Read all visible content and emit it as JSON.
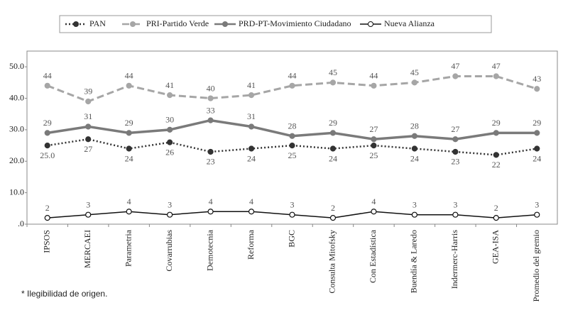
{
  "chart_data": {
    "type": "line",
    "categories": [
      "IPSOS",
      "MERCAEI",
      "Parametria",
      "Covarrubias",
      "Demotecnia",
      "Reforma",
      "BGC",
      "Consulta Mitofsky",
      "Con Estadística",
      "Buendía & Laredo",
      "Indermerc-Harris",
      "GEA-ISA",
      "Promedio del gremio"
    ],
    "series": [
      {
        "name": "PAN",
        "color": "#333333",
        "dash": "dotted",
        "values": [
          25,
          27,
          24,
          26,
          23,
          24,
          25,
          24,
          25,
          24,
          23,
          22,
          24
        ],
        "value_labels": [
          "25.0",
          "27",
          "24",
          "26",
          "23",
          "24",
          "25",
          "24",
          "25",
          "24",
          "23",
          "22",
          "24"
        ]
      },
      {
        "name": "PRI-Partido Verde",
        "color": "#a6a6a6",
        "dash": "dashed",
        "values": [
          44,
          39,
          44,
          41,
          40,
          41,
          44,
          45,
          44,
          45,
          47,
          47,
          43
        ]
      },
      {
        "name": "PRD-PT-Movimiento Ciudadano",
        "color": "#7a7a7a",
        "dash": "solid",
        "values": [
          29,
          31,
          29,
          30,
          33,
          31,
          28,
          29,
          27,
          28,
          27,
          29,
          29
        ]
      },
      {
        "name": "Nueva Alianza",
        "color": "#111111",
        "dash": "thin",
        "values": [
          2,
          3,
          4,
          3,
          4,
          4,
          3,
          2,
          4,
          3,
          3,
          2,
          3
        ]
      }
    ],
    "ylim": [
      0,
      55
    ],
    "yticks": [
      {
        "value": 0,
        "label": ".0"
      },
      {
        "value": 10,
        "label": "10.0"
      },
      {
        "value": 20,
        "label": "20.0"
      },
      {
        "value": 30,
        "label": "30.0"
      },
      {
        "value": 40,
        "label": "40.0"
      },
      {
        "value": 50,
        "label": "50.0"
      }
    ],
    "grid": false,
    "legend": "top",
    "footnote": "* Ilegibilidad de origen."
  }
}
